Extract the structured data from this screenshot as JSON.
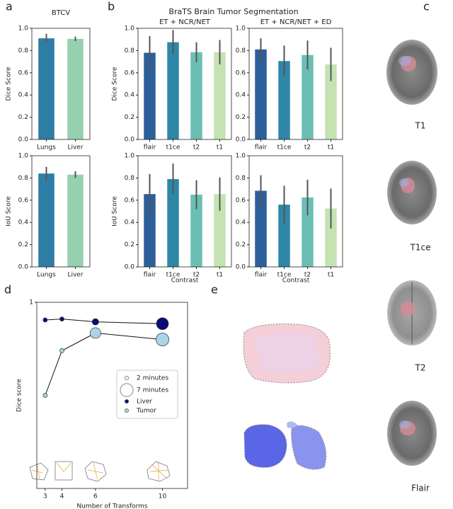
{
  "panel_labels": [
    "a",
    "b",
    "c",
    "d",
    "e"
  ],
  "panel_b_title": "BraTS Brain Tumor Segmentation",
  "brain_images": [
    "T1",
    "T1ce",
    "T2",
    "Flair"
  ],
  "chart_data": [
    {
      "type": "bar",
      "title": "BTCV",
      "ylabel": "Dice Score",
      "categories": [
        "Lungs",
        "Liver"
      ],
      "values": [
        0.91,
        0.905
      ],
      "errors": [
        0.04,
        0.02
      ],
      "colors": [
        "#2e7ea6",
        "#96d0b0"
      ],
      "ylim": [
        0,
        1
      ],
      "yticks": [
        {
          "value": 0,
          "label": "0.0"
        },
        0.2,
        0.4,
        0.6,
        0.8,
        {
          "value": 1,
          "label": "1.0"
        }
      ]
    },
    {
      "type": "bar",
      "ylabel": "IoU Score",
      "categories": [
        "Lungs",
        "Liver"
      ],
      "values": [
        0.84,
        0.83
      ],
      "errors": [
        0.06,
        0.03
      ],
      "colors": [
        "#2e7ea6",
        "#96d0b0"
      ],
      "ylim": [
        0,
        1
      ],
      "yticks": [
        {
          "value": 0,
          "label": "0.0"
        },
        0.2,
        0.4,
        0.6,
        0.8,
        {
          "value": 1,
          "label": "1.0"
        }
      ]
    },
    {
      "type": "bar",
      "title": "ET + NCR/NET",
      "ylabel": "Dice Score",
      "categories": [
        "flair",
        "t1ce",
        "t2",
        "t1"
      ],
      "values": [
        0.78,
        0.875,
        0.785,
        0.785
      ],
      "errors": [
        0.15,
        0.11,
        0.09,
        0.11
      ],
      "colors": [
        "#2d5f9a",
        "#2f87a8",
        "#6cbeb4",
        "#c5e3b2"
      ],
      "ylim": [
        0,
        1
      ],
      "yticks": [
        {
          "value": 0,
          "label": "0.0"
        },
        0.2,
        0.4,
        0.6,
        0.8,
        {
          "value": 1,
          "label": "1.0"
        }
      ]
    },
    {
      "type": "bar",
      "title": "ET + NCR/NET + ED",
      "categories": [
        "flair",
        "t1ce",
        "t2",
        "t1"
      ],
      "values": [
        0.81,
        0.705,
        0.76,
        0.675
      ],
      "errors": [
        0.1,
        0.14,
        0.13,
        0.15
      ],
      "colors": [
        "#2d5f9a",
        "#2f87a8",
        "#6cbeb4",
        "#c5e3b2"
      ],
      "ylim": [
        0,
        1
      ],
      "yticks": [
        {
          "value": 0,
          "label": "0.0"
        },
        0.2,
        0.4,
        0.6,
        0.8,
        {
          "value": 1,
          "label": "1.0"
        }
      ]
    },
    {
      "type": "bar",
      "ylabel": "IoU Score",
      "xlabel": "Contrast",
      "categories": [
        "flair",
        "t1ce",
        "t2",
        "t1"
      ],
      "values": [
        0.655,
        0.79,
        0.65,
        0.655
      ],
      "errors": [
        0.18,
        0.14,
        0.13,
        0.15
      ],
      "colors": [
        "#2d5f9a",
        "#2f87a8",
        "#6cbeb4",
        "#c5e3b2"
      ],
      "ylim": [
        0,
        1
      ],
      "yticks": [
        {
          "value": 0,
          "label": "0.0"
        },
        0.2,
        0.4,
        0.6,
        0.8,
        {
          "value": 1,
          "label": "1.0"
        }
      ]
    },
    {
      "type": "bar",
      "xlabel": "Contrast",
      "categories": [
        "flair",
        "t1ce",
        "t2",
        "t1"
      ],
      "values": [
        0.685,
        0.56,
        0.625,
        0.525
      ],
      "errors": [
        0.14,
        0.17,
        0.16,
        0.18
      ],
      "colors": [
        "#2d5f9a",
        "#2f87a8",
        "#6cbeb4",
        "#c5e3b2"
      ],
      "ylim": [
        0,
        1
      ],
      "yticks": [
        {
          "value": 0,
          "label": "0.0"
        },
        0.2,
        0.4,
        0.6,
        0.8,
        {
          "value": 1,
          "label": "1.0"
        }
      ]
    },
    {
      "type": "line",
      "xlabel": "Number of Transforms",
      "ylabel": "Dice score",
      "x": [
        3,
        4,
        6,
        10
      ],
      "series": [
        {
          "name": "Liver",
          "color": "#0b0b78",
          "values": [
            0.905,
            0.91,
            0.895,
            0.885
          ],
          "sizes": [
            2.3,
            2.3,
            3.5,
            6.5
          ]
        },
        {
          "name": "Tumor",
          "color": "#a9d5e6",
          "values": [
            0.5,
            0.74,
            0.835,
            0.8
          ],
          "sizes": [
            2.3,
            2.3,
            5.8,
            7
          ]
        }
      ],
      "size_legend": [
        {
          "value": 2,
          "label": "2 minutes"
        },
        {
          "value": 7,
          "label": "7 minutes"
        }
      ],
      "xlim": [
        2.5,
        11.5
      ],
      "ylim": [
        0,
        1
      ],
      "xticks": [
        3,
        4,
        6,
        10
      ],
      "yticks": [
        1
      ]
    }
  ]
}
